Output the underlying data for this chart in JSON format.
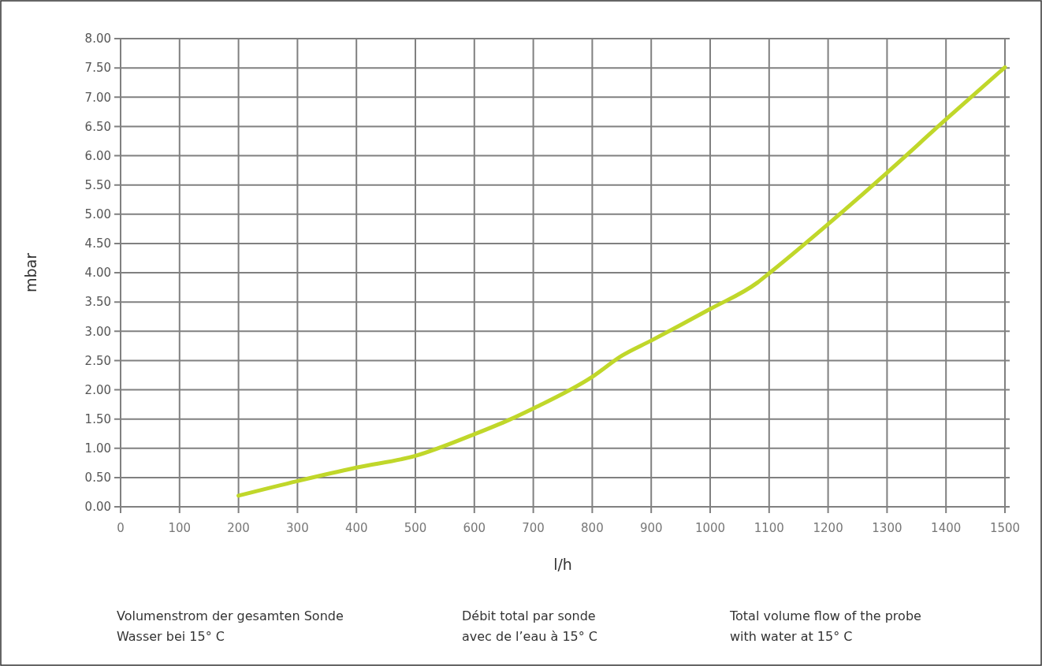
{
  "chart_data": {
    "type": "line",
    "xlabel": "l/h",
    "ylabel": "mbar",
    "x": [
      200,
      300,
      400,
      500,
      600,
      660,
      700,
      800,
      850,
      900,
      1000,
      1080,
      1100,
      1200,
      1300,
      1400,
      1500
    ],
    "series": [
      {
        "color": "#c0d72a",
        "values": [
          0.19,
          0.44,
          0.67,
          0.87,
          1.24,
          1.49,
          1.68,
          2.22,
          2.58,
          2.84,
          3.38,
          3.83,
          3.99,
          4.83,
          5.71,
          6.62,
          7.51
        ]
      }
    ],
    "xlim": [
      0,
      1500
    ],
    "xticks": [
      0,
      100,
      200,
      300,
      400,
      500,
      600,
      700,
      800,
      900,
      1000,
      1100,
      1200,
      1300,
      1400,
      1500
    ],
    "ylim": [
      0,
      8
    ],
    "yticks": [
      {
        "value": 0,
        "label": "0.00"
      },
      {
        "value": 0.5,
        "label": "0.50"
      },
      {
        "value": 1,
        "label": "1.00"
      },
      {
        "value": 1.5,
        "label": "1.50"
      },
      {
        "value": 2,
        "label": "2.00"
      },
      {
        "value": 2.5,
        "label": "2.50"
      },
      {
        "value": 3,
        "label": "3.00"
      },
      {
        "value": 3.5,
        "label": "3.50"
      },
      {
        "value": 4,
        "label": "4.00"
      },
      {
        "value": 4.5,
        "label": "4.50"
      },
      {
        "value": 5,
        "label": "5.00"
      },
      {
        "value": 5.5,
        "label": "5.50"
      },
      {
        "value": 6,
        "label": "6.00"
      },
      {
        "value": 6.5,
        "label": "6.50"
      },
      {
        "value": 7,
        "label": "7.00"
      },
      {
        "value": 7.5,
        "label": "7.50"
      },
      {
        "value": 8,
        "label": "8.00"
      }
    ],
    "grid": true,
    "marker": "none",
    "line_style": "solid",
    "annotations": [
      "Volumenstrom der gesamten Sonde\nWasser bei 15° C",
      "Débit total par sonde\navec de l’eau à 15° C",
      "Total volume flow of the probe\nwith water at 15° C"
    ]
  }
}
